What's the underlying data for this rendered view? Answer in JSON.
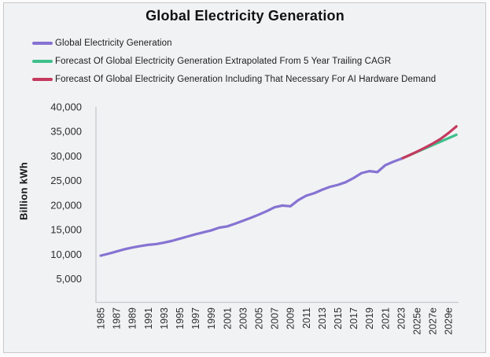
{
  "title": "Global Electricity Generation",
  "colors": {
    "background": "#f1f2f4",
    "border": "#c9c9c9",
    "axis": "#c6c8cb",
    "text": "#1c1c1c",
    "historical_line": "#8673d2",
    "forecast_cagr_line": "#3ec08b",
    "forecast_ai_line": "#c43a5e"
  },
  "chart_data": {
    "type": "line",
    "title": "Global Electricity Generation",
    "xlabel": "",
    "ylabel": "Billion kWh",
    "ylim": [
      0,
      40000
    ],
    "grid": false,
    "legend_position": "top-left",
    "yticks": [
      40000,
      35000,
      30000,
      25000,
      20000,
      15000,
      10000,
      5000
    ],
    "xtick_years": [
      1985,
      1987,
      1989,
      1991,
      1993,
      1995,
      1997,
      1999,
      2001,
      2003,
      2005,
      2007,
      2009,
      2011,
      2013,
      2015,
      2017,
      2019,
      2021,
      2023,
      2025,
      2027,
      2029
    ],
    "xtick_labels": [
      "1985",
      "1987",
      "1989",
      "1991",
      "1993",
      "1995",
      "1997",
      "1999",
      "2001",
      "2003",
      "2005",
      "2007",
      "2009",
      "2011",
      "2013",
      "2015",
      "2017",
      "2019",
      "2021",
      "2023",
      "2025e",
      "2027e",
      "2029e"
    ],
    "series": [
      {
        "name": "Global Electricity Generation",
        "role": "historical",
        "color": "#8673d2",
        "x": [
          1985,
          1986,
          1987,
          1988,
          1989,
          1990,
          1991,
          1992,
          1993,
          1994,
          1995,
          1996,
          1997,
          1998,
          1999,
          2000,
          2001,
          2002,
          2003,
          2004,
          2005,
          2006,
          2007,
          2008,
          2009,
          2010,
          2011,
          2012,
          2013,
          2014,
          2015,
          2016,
          2017,
          2018,
          2019,
          2020,
          2021,
          2022,
          2023
        ],
        "values": [
          9700,
          10100,
          10550,
          11000,
          11350,
          11650,
          11900,
          12050,
          12350,
          12700,
          13150,
          13600,
          14050,
          14450,
          14850,
          15400,
          15650,
          16200,
          16800,
          17400,
          18050,
          18750,
          19550,
          19900,
          19750,
          21000,
          21900,
          22400,
          23100,
          23700,
          24100,
          24650,
          25500,
          26500,
          26900,
          26700,
          28100,
          28800,
          29400
        ]
      },
      {
        "name": "Forecast Of Global Electricity Generation Extrapolated From 5 Year Trailing CAGR",
        "role": "forecast-cagr",
        "color": "#3ec08b",
        "x": [
          2023,
          2024,
          2025,
          2026,
          2027,
          2028,
          2029,
          2030
        ],
        "values": [
          29400,
          30100,
          30800,
          31500,
          32200,
          32900,
          33600,
          34300
        ]
      },
      {
        "name": "Forecast Of Global Electricity Generation Including That Necessary For AI Hardware Demand",
        "role": "forecast-ai",
        "color": "#c43a5e",
        "x": [
          2023,
          2024,
          2025,
          2026,
          2027,
          2028,
          2029,
          2030
        ],
        "values": [
          29400,
          30100,
          30850,
          31650,
          32500,
          33450,
          34650,
          36000
        ]
      }
    ]
  }
}
